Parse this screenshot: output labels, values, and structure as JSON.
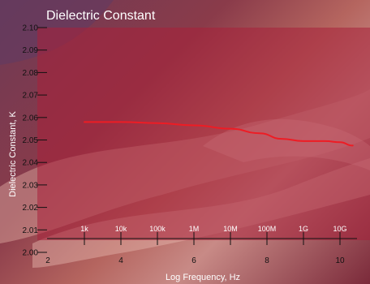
{
  "chart_data": {
    "type": "line",
    "title": "Dielectric Constant",
    "xlabel": "Log Frequency, Hz",
    "ylabel": "Dielectric Constant, K",
    "xlim": [
      2,
      10.8
    ],
    "ylim": [
      2.0,
      2.1
    ],
    "x_ticks": [
      2,
      4,
      6,
      8,
      10
    ],
    "y_ticks": [
      "2.00",
      "2.01",
      "2.02",
      "2.03",
      "2.04",
      "2.05",
      "2.06",
      "2.07",
      "2.08",
      "2.09",
      "2.10"
    ],
    "freq_ticks": [
      {
        "x": 3,
        "label": "1k"
      },
      {
        "x": 4,
        "label": "10k"
      },
      {
        "x": 5,
        "label": "100k"
      },
      {
        "x": 6,
        "label": "1M"
      },
      {
        "x": 7,
        "label": "10M"
      },
      {
        "x": 8,
        "label": "100M"
      },
      {
        "x": 9,
        "label": "1G"
      },
      {
        "x": 10,
        "label": "10G"
      }
    ],
    "grid": false,
    "series": [
      {
        "color": "#ee1c24",
        "points": [
          {
            "x": 3.0,
            "y": 2.058
          },
          {
            "x": 4.0,
            "y": 2.058
          },
          {
            "x": 5.0,
            "y": 2.0575
          },
          {
            "x": 6.0,
            "y": 2.0565
          },
          {
            "x": 7.0,
            "y": 2.055
          },
          {
            "x": 7.8,
            "y": 2.053
          },
          {
            "x": 8.4,
            "y": 2.0505
          },
          {
            "x": 9.0,
            "y": 2.0495
          },
          {
            "x": 9.6,
            "y": 2.0495
          },
          {
            "x": 10.0,
            "y": 2.049
          },
          {
            "x": 10.35,
            "y": 2.0475
          }
        ]
      }
    ]
  }
}
